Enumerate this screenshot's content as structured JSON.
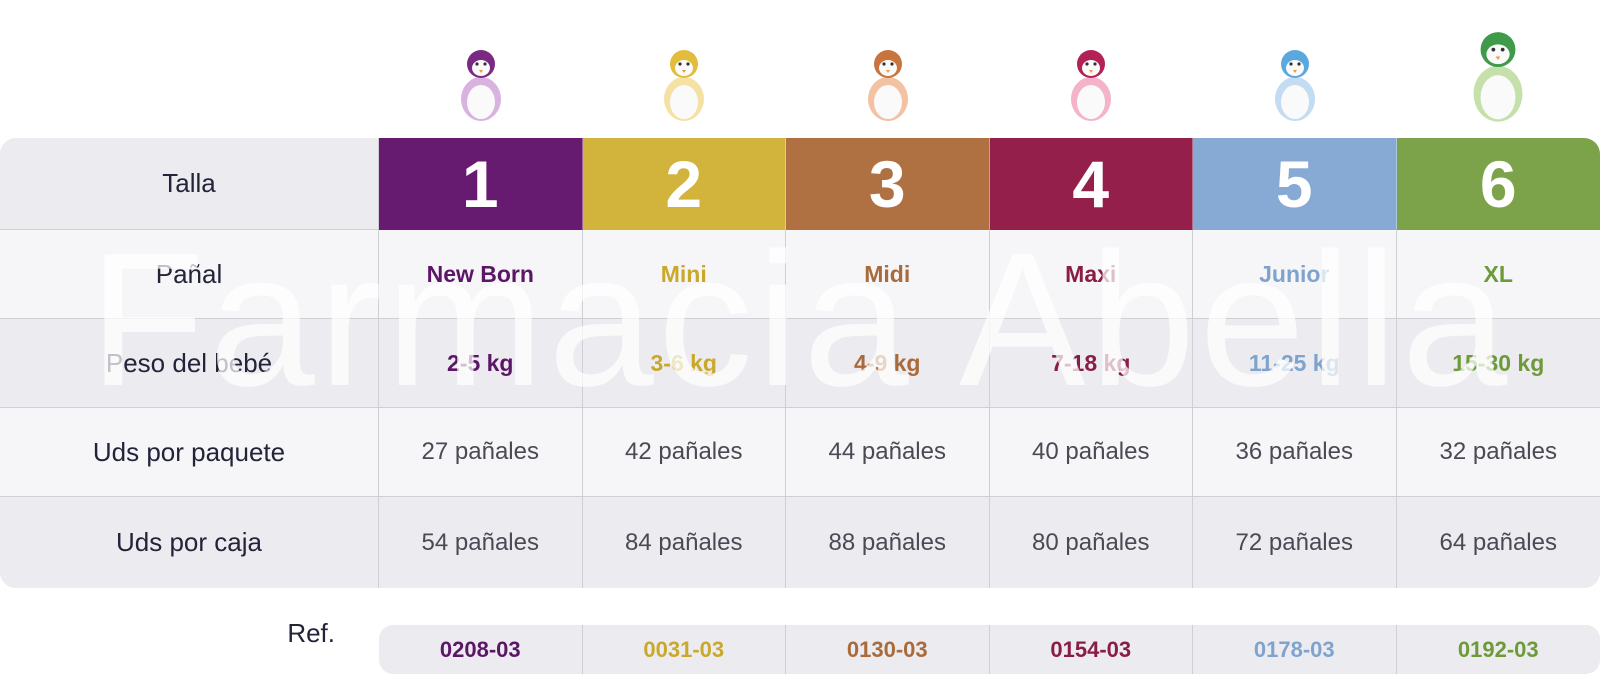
{
  "labels": {
    "talla": "Talla",
    "panal": "Pañal",
    "peso": "Peso del bebé",
    "paquete": "Uds por paquete",
    "caja": "Uds por caja",
    "ref": "Ref."
  },
  "columns": [
    {
      "size": "1",
      "name": "New Born",
      "weight": "2-5 kg",
      "pack": "27 pañales",
      "box": "54 pañales",
      "ref": "0208-03",
      "color": "#661a70",
      "text_color": "#5b1667",
      "penguin": "penguin-purple-icon"
    },
    {
      "size": "2",
      "name": "Mini",
      "weight": "3-6 kg",
      "pack": "42 pañales",
      "box": "84 pañales",
      "ref": "0031-03",
      "color": "#d2b43c",
      "text_color": "#c9a82c",
      "penguin": "penguin-yellow-icon"
    },
    {
      "size": "3",
      "name": "Midi",
      "weight": "4-9 kg",
      "pack": "44 pañales",
      "box": "88 pañales",
      "ref": "0130-03",
      "color": "#b07142",
      "text_color": "#a96a3c",
      "penguin": "penguin-orange-icon"
    },
    {
      "size": "4",
      "name": "Maxi",
      "weight": "7-18 kg",
      "pack": "40 pañales",
      "box": "80 pañales",
      "ref": "0154-03",
      "color": "#931f4a",
      "text_color": "#8a1d46",
      "penguin": "penguin-red-icon"
    },
    {
      "size": "5",
      "name": "Junior",
      "weight": "11-25 kg",
      "pack": "36 pañales",
      "box": "72 pañales",
      "ref": "0178-03",
      "color": "#86aad4",
      "text_color": "#7fa3cd",
      "penguin": "penguin-blue-icon"
    },
    {
      "size": "6",
      "name": "XL",
      "weight": "15-30 kg",
      "pack": "32 pañales",
      "box": "64 pañales",
      "ref": "0192-03",
      "color": "#7da34a",
      "text_color": "#6e9a3a",
      "penguin": "penguin-green-icon"
    }
  ],
  "watermark": "Farmacia Abella"
}
